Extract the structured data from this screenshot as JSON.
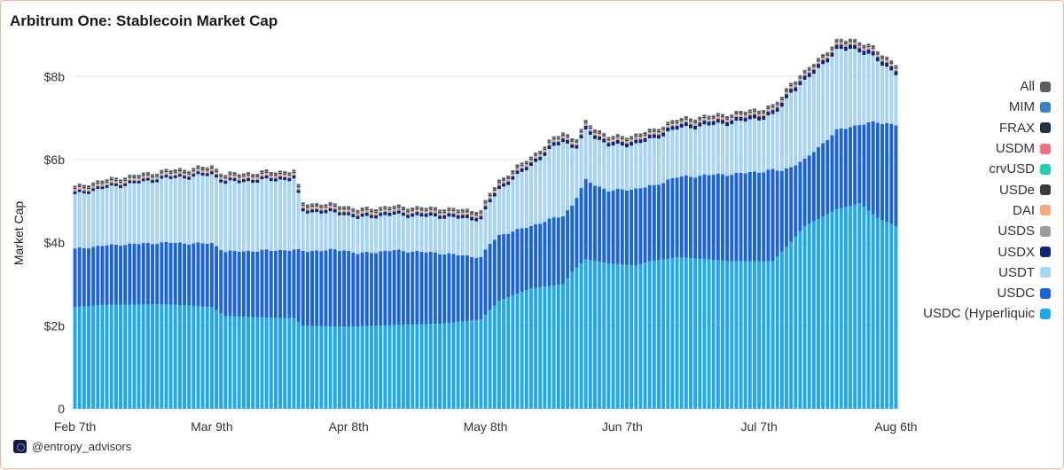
{
  "chart_data": {
    "type": "bar",
    "stacked": true,
    "title": "Arbitrum One: Stablecoin Market Cap",
    "ylabel": "Market Cap",
    "xlabel": "",
    "ylim": [
      0,
      8500000000
    ],
    "grid": true,
    "legend_position": "right",
    "y_ticks": [
      {
        "value": 0,
        "label": "0"
      },
      {
        "value": 2000000000,
        "label": "$2b"
      },
      {
        "value": 4000000000,
        "label": "$4b"
      },
      {
        "value": 6000000000,
        "label": "$6b"
      },
      {
        "value": 8000000000,
        "label": "$8b"
      }
    ],
    "x_ticks": [
      {
        "label": "Feb 7th",
        "index": 0
      },
      {
        "label": "Mar 9th",
        "index": 30
      },
      {
        "label": "Apr 8th",
        "index": 60
      },
      {
        "label": "May 8th",
        "index": 90
      },
      {
        "label": "Jun 7th",
        "index": 120
      },
      {
        "label": "Jul 7th",
        "index": 150
      },
      {
        "label": "Aug 6th",
        "index": 180
      }
    ],
    "x_start": "2025-02-07",
    "days": 181,
    "series_order_bottom_up": [
      "USDC (Hyperliquic",
      "USDC",
      "USDT",
      "USDX",
      "USDS",
      "DAI",
      "USDe",
      "crvUSD",
      "USDM",
      "FRAX",
      "MIM",
      "All"
    ],
    "legend": [
      {
        "name": "All",
        "color": "#5a5d63"
      },
      {
        "name": "MIM",
        "color": "#3d82c8"
      },
      {
        "name": "FRAX",
        "color": "#22324a"
      },
      {
        "name": "USDM",
        "color": "#f26d7d"
      },
      {
        "name": "crvUSD",
        "color": "#1fd1b0"
      },
      {
        "name": "USDe",
        "color": "#3a3b3f"
      },
      {
        "name": "DAI",
        "color": "#f7a77a"
      },
      {
        "name": "USDS",
        "color": "#9b9b9b"
      },
      {
        "name": "USDX",
        "color": "#10237a"
      },
      {
        "name": "USDT",
        "color": "#a7d3f5"
      },
      {
        "name": "USDC",
        "color": "#1a63e0"
      },
      {
        "name": "USDC (Hyperliquic",
        "color": "#1ea8f0"
      }
    ],
    "series_anchors_billions": {
      "USDC (Hyperliquic": [
        [
          0,
          2.45
        ],
        [
          6,
          2.5
        ],
        [
          20,
          2.52
        ],
        [
          30,
          2.45
        ],
        [
          33,
          2.23
        ],
        [
          48,
          2.18
        ],
        [
          50,
          2.0
        ],
        [
          60,
          1.98
        ],
        [
          65,
          2.0
        ],
        [
          80,
          2.05
        ],
        [
          89,
          2.15
        ],
        [
          93,
          2.6
        ],
        [
          100,
          2.9
        ],
        [
          107,
          3.0
        ],
        [
          109,
          3.3
        ],
        [
          112,
          3.6
        ],
        [
          117,
          3.5
        ],
        [
          123,
          3.45
        ],
        [
          126,
          3.55
        ],
        [
          132,
          3.65
        ],
        [
          145,
          3.55
        ],
        [
          153,
          3.55
        ],
        [
          156,
          3.9
        ],
        [
          160,
          4.4
        ],
        [
          167,
          4.8
        ],
        [
          172,
          4.95
        ],
        [
          176,
          4.6
        ],
        [
          180,
          4.4
        ]
      ],
      "USDC": [
        [
          0,
          1.4
        ],
        [
          10,
          1.45
        ],
        [
          25,
          1.5
        ],
        [
          40,
          1.6
        ],
        [
          48,
          1.65
        ],
        [
          50,
          1.8
        ],
        [
          59,
          1.85
        ],
        [
          62,
          1.75
        ],
        [
          70,
          1.8
        ],
        [
          80,
          1.7
        ],
        [
          89,
          1.5
        ],
        [
          91,
          1.6
        ],
        [
          100,
          1.5
        ],
        [
          104,
          1.6
        ],
        [
          107,
          1.65
        ],
        [
          109,
          1.6
        ],
        [
          112,
          1.9
        ],
        [
          117,
          1.75
        ],
        [
          123,
          1.85
        ],
        [
          127,
          1.8
        ],
        [
          130,
          1.9
        ],
        [
          140,
          2.05
        ],
        [
          153,
          2.2
        ],
        [
          155,
          1.95
        ],
        [
          160,
          1.6
        ],
        [
          167,
          1.9
        ],
        [
          172,
          1.9
        ],
        [
          176,
          2.3
        ],
        [
          180,
          2.45
        ]
      ],
      "USDT": [
        [
          0,
          1.3
        ],
        [
          30,
          1.65
        ],
        [
          48,
          1.7
        ],
        [
          50,
          0.95
        ],
        [
          60,
          0.85
        ],
        [
          75,
          0.85
        ],
        [
          89,
          0.9
        ],
        [
          95,
          1.2
        ],
        [
          107,
          1.8
        ],
        [
          110,
          1.2
        ],
        [
          120,
          1.05
        ],
        [
          130,
          1.15
        ],
        [
          140,
          1.2
        ],
        [
          153,
          1.3
        ],
        [
          157,
          1.8
        ],
        [
          162,
          1.9
        ],
        [
          170,
          1.9
        ],
        [
          180,
          1.22
        ]
      ],
      "USDX": [
        [
          0,
          0.06
        ],
        [
          180,
          0.1
        ]
      ],
      "USDS": [
        [
          0,
          0.03
        ],
        [
          180,
          0.03
        ]
      ],
      "DAI": [
        [
          0,
          0.03
        ],
        [
          180,
          0.03
        ]
      ],
      "USDe": [
        [
          0,
          0.03
        ],
        [
          180,
          0.03
        ]
      ],
      "crvUSD": [
        [
          0,
          0.01
        ],
        [
          180,
          0.01
        ]
      ],
      "USDM": [
        [
          0,
          0.005
        ],
        [
          180,
          0.005
        ]
      ],
      "FRAX": [
        [
          0,
          0.02
        ],
        [
          180,
          0.02
        ]
      ],
      "MIM": [
        [
          0,
          0.01
        ],
        [
          180,
          0.01
        ]
      ],
      "All": [
        [
          0,
          0.01
        ],
        [
          180,
          0.01
        ]
      ]
    }
  },
  "watermark": {
    "handle": "@entropy_advisors",
    "logo_icon": "entropy-logo-icon"
  }
}
